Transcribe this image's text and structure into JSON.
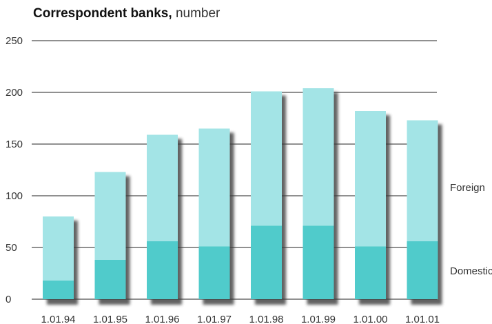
{
  "title": "Correspondent banks,",
  "unit": "number",
  "colors": {
    "foreign": "#a3e4e6",
    "domestic": "#50cbcb",
    "shadow": "#3a3a3a"
  },
  "chart_data": {
    "type": "bar",
    "stacked": true,
    "title": "Correspondent banks, number",
    "categories": [
      "1.01.94",
      "1.01.95",
      "1.01.96",
      "1.01.97",
      "1.01.98",
      "1.01.99",
      "1.01.00",
      "1.01.01"
    ],
    "series": [
      {
        "name": "Domestic",
        "values": [
          18,
          38,
          56,
          51,
          71,
          71,
          51,
          56
        ]
      },
      {
        "name": "Foreign",
        "values": [
          62,
          85,
          103,
          114,
          130,
          133,
          131,
          117
        ]
      }
    ],
    "totals": [
      80,
      123,
      159,
      165,
      201,
      204,
      182,
      173
    ],
    "ylim": [
      0,
      250
    ],
    "yticks": [
      "0",
      "50",
      "100",
      "150",
      "200",
      "250"
    ],
    "grid": true,
    "legend": "right"
  }
}
